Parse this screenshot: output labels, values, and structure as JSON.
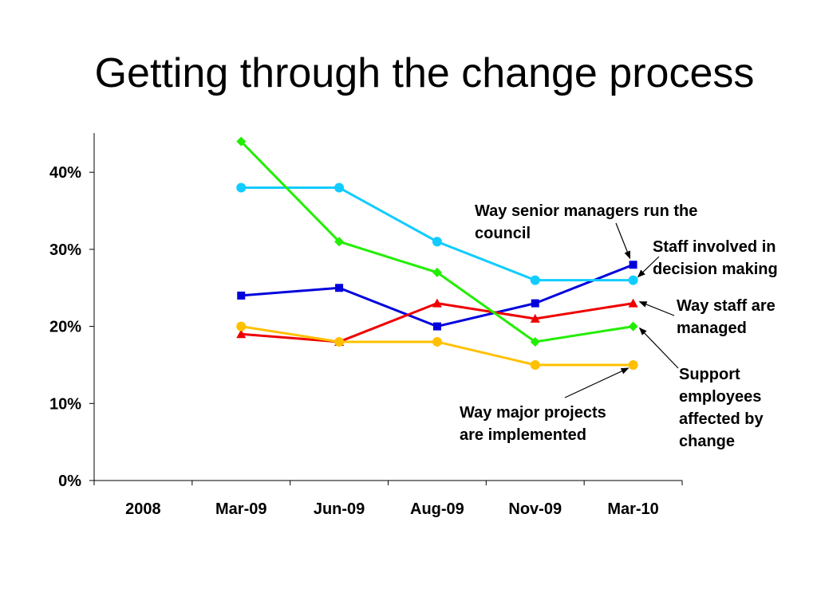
{
  "slide": {
    "title": "Getting through the change process"
  },
  "chart_data": {
    "type": "line",
    "categories": [
      "2008",
      "Mar-09",
      "Jun-09",
      "Aug-09",
      "Nov-09",
      "Mar-10"
    ],
    "ylim": [
      0,
      45
    ],
    "yticks": [
      0,
      10,
      20,
      30,
      40
    ],
    "ytick_labels": [
      "0%",
      "10%",
      "20%",
      "30%",
      "40%"
    ],
    "grid": false,
    "legend": "none (direct annotations)",
    "series": [
      {
        "name": "Way senior managers run the council",
        "color": "#0000dd",
        "marker": "square",
        "values": [
          null,
          24,
          25,
          20,
          23,
          28
        ]
      },
      {
        "name": "Staff involved in decision making",
        "color": "#11ccff",
        "marker": "circle",
        "values": [
          null,
          38,
          38,
          31,
          26,
          26
        ]
      },
      {
        "name": "Way staff are managed",
        "color": "#ee0000",
        "marker": "triangle",
        "values": [
          null,
          19,
          18,
          23,
          21,
          23
        ]
      },
      {
        "name": "Support employees affected by change",
        "color": "#22ee00",
        "marker": "diamond",
        "values": [
          null,
          44,
          31,
          27,
          18,
          20
        ]
      },
      {
        "name": "Way major projects are implemented",
        "color": "#ffc000",
        "marker": "circle",
        "values": [
          null,
          20,
          18,
          18,
          15,
          15
        ]
      }
    ],
    "annotations": [
      {
        "lines": [
          "Way senior managers run the",
          "council"
        ]
      },
      {
        "lines": [
          "Staff involved in",
          "decision making"
        ]
      },
      {
        "lines": [
          "Way staff are",
          "managed"
        ]
      },
      {
        "lines": [
          "Support",
          "employees",
          "affected by",
          "change"
        ]
      },
      {
        "lines": [
          "Way major projects",
          "are implemented"
        ]
      }
    ]
  }
}
